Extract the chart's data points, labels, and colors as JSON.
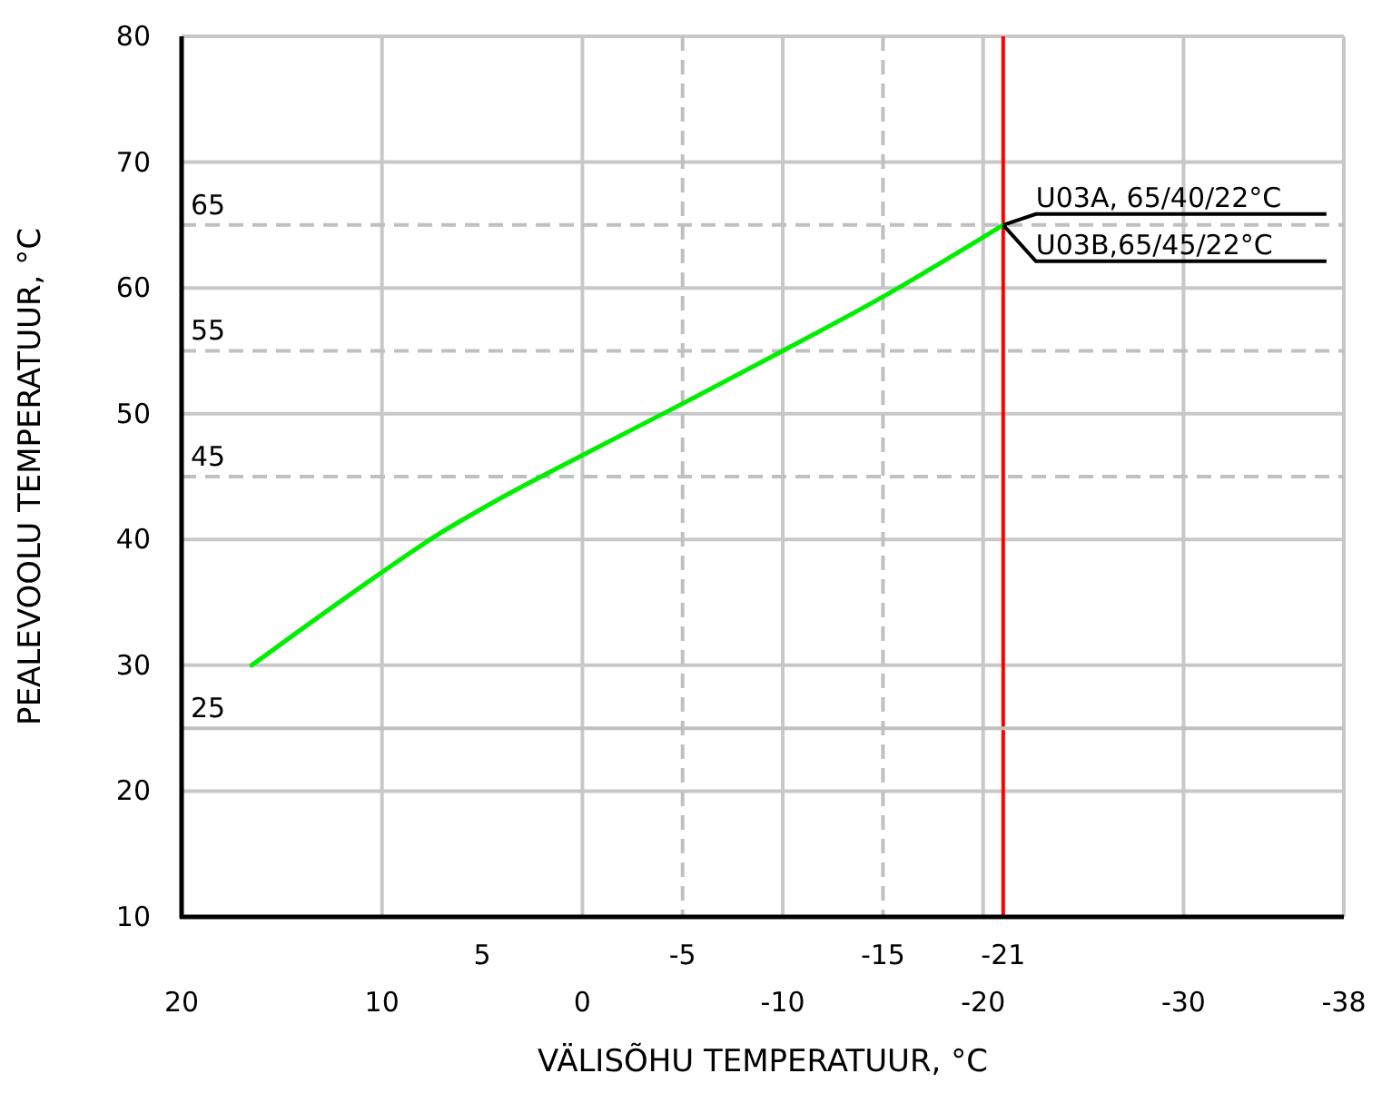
{
  "chart_data": {
    "type": "line",
    "xlabel": "VÄLISÕHU TEMPERATUUR, °C",
    "ylabel": "PEALEVOOLU TEMPERATUUR, °C",
    "xlim": [
      20,
      -38
    ],
    "ylim": [
      10,
      80
    ],
    "xticks": [
      20,
      10,
      0,
      -10,
      -20,
      -30,
      -38
    ],
    "yticks": [
      10,
      20,
      30,
      40,
      50,
      60,
      70,
      80
    ],
    "grid": true,
    "marker": "none",
    "line_style": "solid",
    "series": [
      {
        "color": "#00ee00",
        "x": [
          16.5,
          10,
          7.3,
          4.4,
          0,
          -5,
          -10,
          -15,
          -21
        ],
        "values": [
          30,
          37.4,
          40.3,
          43,
          46.7,
          50.8,
          55,
          59.3,
          65
        ]
      }
    ],
    "ref_lines": [
      {
        "axis": "x",
        "value": -21,
        "label": "-21",
        "color": "#ff0000",
        "line_style": "solid"
      },
      {
        "axis": "x",
        "value": -5,
        "label": "-5",
        "color": "#c0c0c0",
        "line_style": "dashed"
      },
      {
        "axis": "x",
        "value": -15,
        "label": "-15",
        "color": "#c0c0c0",
        "line_style": "dashed"
      },
      {
        "axis": "y",
        "value": 65,
        "label": "65",
        "color": "#c0c0c0",
        "line_style": "dashed"
      },
      {
        "axis": "y",
        "value": 55,
        "label": "55",
        "color": "#c0c0c0",
        "line_style": "dashed"
      },
      {
        "axis": "y",
        "value": 45,
        "label": "45",
        "color": "#c0c0c0",
        "line_style": "dashed"
      },
      {
        "axis": "y",
        "value": 25,
        "label": "25",
        "color": "#c0c0c0",
        "line_style": "solid"
      }
    ],
    "annotations": [
      {
        "text": "U03A, 65/40/22°C",
        "x": -21,
        "y": 65
      },
      {
        "text": "U03B,65/45/22°C",
        "x": -21,
        "y": 65
      },
      "5"
    ]
  }
}
